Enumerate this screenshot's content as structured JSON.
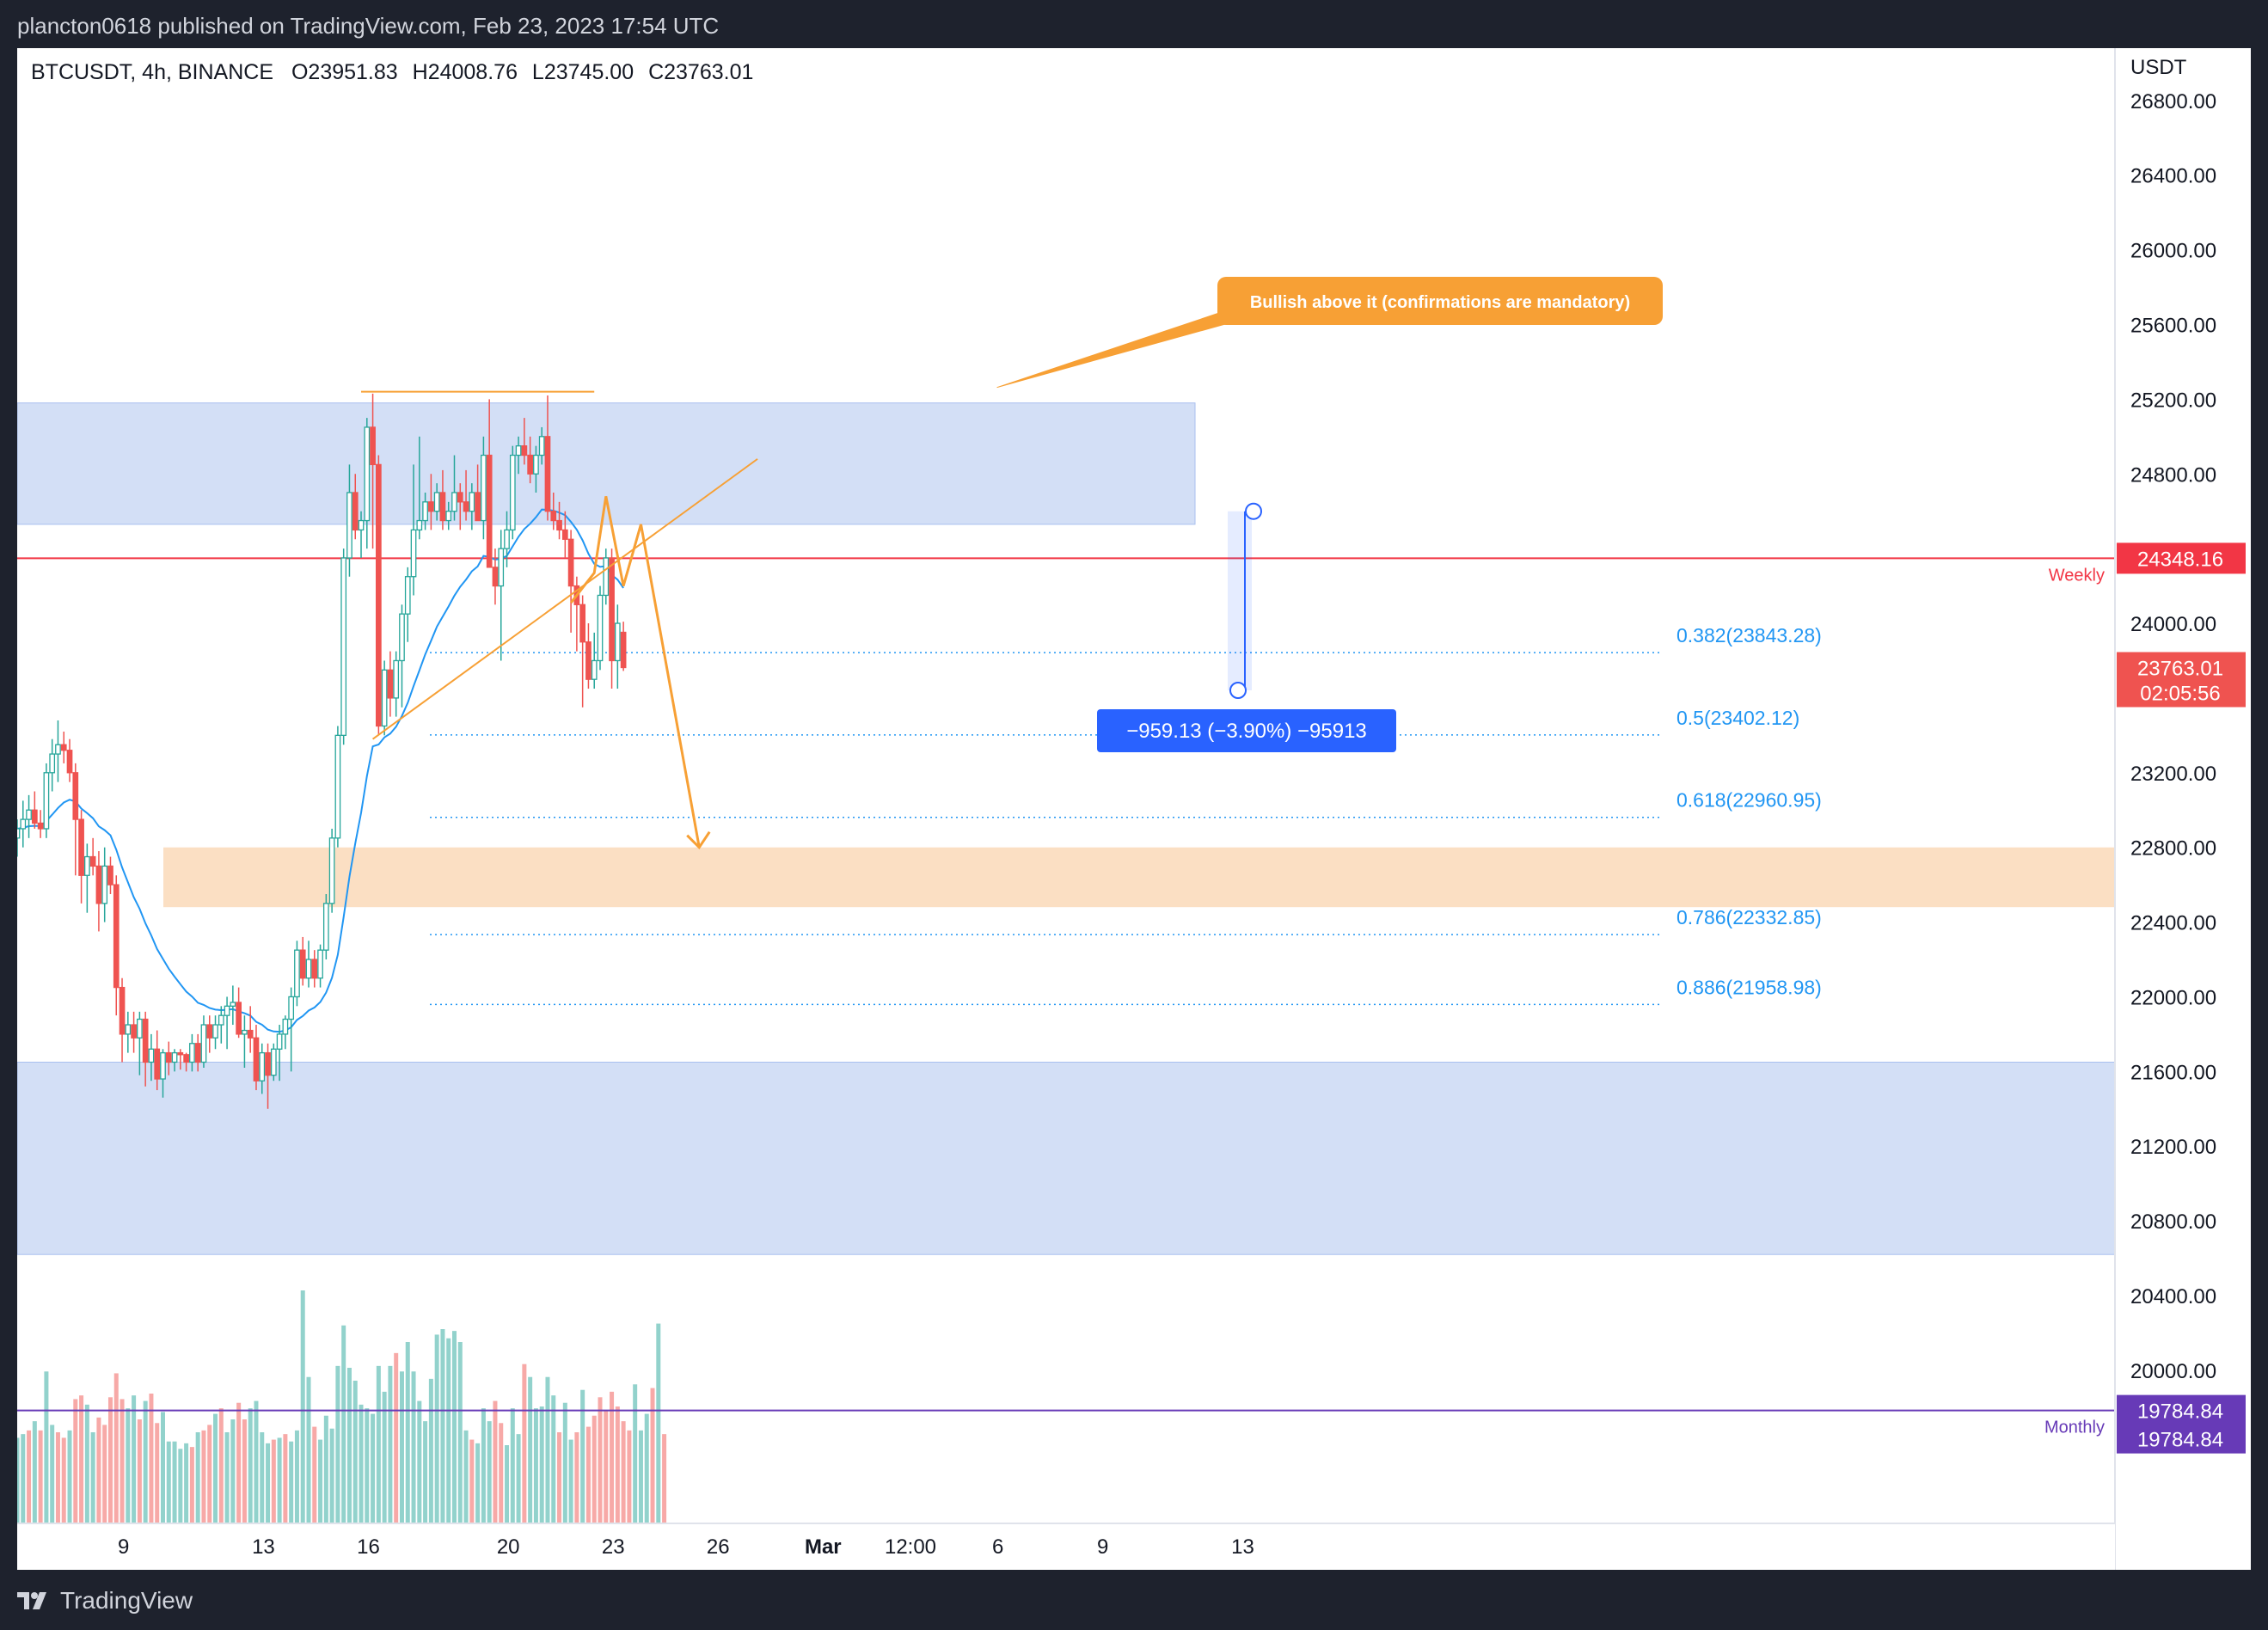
{
  "header": {
    "publish_line": "plancton0618 published on TradingView.com, Feb 23, 2023 17:54 UTC"
  },
  "footer": {
    "logo_text": "TradingView"
  },
  "legend": {
    "symbol": "BTCUSDT, 4h, BINANCE",
    "open": "O23951.83",
    "high": "H24008.76",
    "low": "L23745.00",
    "close": "C23763.01"
  },
  "colors": {
    "up": "#26a69a",
    "down": "#ef5350",
    "ema": "#2196f3",
    "annotation": "#f7a035",
    "weekly": "#f23645",
    "monthly": "#673ab7",
    "fib": "#2196f3",
    "zone_blue": "#cfdcf6",
    "zone_orange": "#fbdcbd",
    "measure": "#2962ff"
  },
  "chart_data": {
    "type": "candlestick",
    "symbol": "BTCUSDT",
    "timeframe": "4h",
    "exchange": "BINANCE",
    "currency": "USDT",
    "ohlc_last": {
      "open": 23951.83,
      "high": 24008.76,
      "low": 23745.0,
      "close": 23763.01
    },
    "ylim": [
      19180,
      27080
    ],
    "y_ticks": [
      20000,
      20400,
      20800,
      21200,
      21600,
      22000,
      22400,
      22800,
      23200,
      23600,
      24000,
      24400,
      24800,
      25200,
      25600,
      26000,
      26400,
      26800
    ],
    "y_tick_labels": [
      "20000.00",
      "20400.00",
      "20800.00",
      "21200.00",
      "21600.00",
      "22000.00",
      "22400.00",
      "22800.00",
      "23200.00",
      "",
      "24000.00",
      "",
      "24800.00",
      "25200.00",
      "25600.00",
      "26000.00",
      "26400.00",
      "26800.00"
    ],
    "x_ticks": [
      {
        "label": "9",
        "bar": 15
      },
      {
        "label": "13",
        "bar": 39
      },
      {
        "label": "16",
        "bar": 57
      },
      {
        "label": "20",
        "bar": 81
      },
      {
        "label": "23",
        "bar": 99
      },
      {
        "label": "26",
        "bar": 117
      },
      {
        "label": "Mar",
        "bar": 135
      },
      {
        "label": "12:00",
        "bar": 150
      },
      {
        "label": "6",
        "bar": 165
      },
      {
        "label": "9",
        "bar": 183
      },
      {
        "label": "13",
        "bar": 207
      }
    ],
    "candles": [
      [
        22850,
        22950,
        22750,
        22900
      ],
      [
        22900,
        23050,
        22800,
        22950
      ],
      [
        22950,
        23080,
        22850,
        23000
      ],
      [
        23000,
        23100,
        22900,
        22930
      ],
      [
        22930,
        23000,
        22850,
        22900
      ],
      [
        22900,
        23250,
        22850,
        23200
      ],
      [
        23200,
        23380,
        23100,
        23300
      ],
      [
        23300,
        23480,
        23150,
        23350
      ],
      [
        23350,
        23420,
        23250,
        23320
      ],
      [
        23320,
        23380,
        23150,
        23200
      ],
      [
        23200,
        23250,
        22650,
        22950
      ],
      [
        22950,
        23000,
        22500,
        22650
      ],
      [
        22650,
        22820,
        22450,
        22750
      ],
      [
        22750,
        22850,
        22650,
        22700
      ],
      [
        22700,
        22780,
        22350,
        22500
      ],
      [
        22500,
        22800,
        22400,
        22700
      ],
      [
        22700,
        22750,
        22550,
        22600
      ],
      [
        22600,
        22650,
        21900,
        22050
      ],
      [
        22050,
        22100,
        21650,
        21800
      ],
      [
        21800,
        21920,
        21700,
        21850
      ],
      [
        21850,
        21920,
        21700,
        21780
      ],
      [
        21780,
        21920,
        21580,
        21880
      ],
      [
        21880,
        21920,
        21520,
        21650
      ],
      [
        21650,
        21800,
        21550,
        21720
      ],
      [
        21720,
        21820,
        21500,
        21560
      ],
      [
        21560,
        21720,
        21460,
        21700
      ],
      [
        21700,
        21760,
        21580,
        21650
      ],
      [
        21650,
        21720,
        21600,
        21700
      ],
      [
        21700,
        21720,
        21610,
        21690
      ],
      [
        21690,
        21700,
        21600,
        21650
      ],
      [
        21650,
        21800,
        21600,
        21750
      ],
      [
        21750,
        21800,
        21600,
        21650
      ],
      [
        21650,
        21900,
        21620,
        21850
      ],
      [
        21850,
        21900,
        21700,
        21780
      ],
      [
        21780,
        21900,
        21720,
        21850
      ],
      [
        21850,
        21950,
        21750,
        21900
      ],
      [
        21900,
        22000,
        21720,
        21950
      ],
      [
        21950,
        22060,
        21850,
        21970
      ],
      [
        21970,
        22050,
        21780,
        21800
      ],
      [
        21800,
        21900,
        21620,
        21820
      ],
      [
        21820,
        21950,
        21700,
        21780
      ],
      [
        21780,
        21850,
        21500,
        21550
      ],
      [
        21550,
        21750,
        21480,
        21700
      ],
      [
        21700,
        21750,
        21400,
        21580
      ],
      [
        21580,
        21750,
        21550,
        21720
      ],
      [
        21720,
        21850,
        21550,
        21800
      ],
      [
        21800,
        21900,
        21720,
        21880
      ],
      [
        21880,
        22050,
        21600,
        22000
      ],
      [
        22000,
        22300,
        21950,
        22250
      ],
      [
        22250,
        22320,
        22060,
        22100
      ],
      [
        22100,
        22300,
        22050,
        22200
      ],
      [
        22200,
        22250,
        22050,
        22100
      ],
      [
        22100,
        22280,
        22050,
        22250
      ],
      [
        22250,
        22550,
        22200,
        22500
      ],
      [
        22500,
        22900,
        22450,
        22850
      ],
      [
        22850,
        23450,
        22800,
        23400
      ],
      [
        23400,
        24400,
        23350,
        24350
      ],
      [
        24350,
        24850,
        24250,
        24700
      ],
      [
        24700,
        24800,
        24450,
        24500
      ],
      [
        24500,
        24600,
        24350,
        24550
      ],
      [
        24550,
        25100,
        24400,
        25050
      ],
      [
        25050,
        25230,
        24400,
        24850
      ],
      [
        24850,
        24900,
        23400,
        23450
      ],
      [
        23450,
        23800,
        23400,
        23750
      ],
      [
        23750,
        23850,
        23500,
        23600
      ],
      [
        23600,
        23850,
        23500,
        23800
      ],
      [
        23800,
        24100,
        23550,
        24050
      ],
      [
        24050,
        24300,
        23900,
        24250
      ],
      [
        24250,
        24850,
        24150,
        24500
      ],
      [
        24500,
        25000,
        24450,
        24550
      ],
      [
        24550,
        24700,
        24500,
        24650
      ],
      [
        24650,
        24800,
        24500,
        24600
      ],
      [
        24600,
        24750,
        24550,
        24700
      ],
      [
        24700,
        24820,
        24500,
        24550
      ],
      [
        24550,
        24650,
        24500,
        24600
      ],
      [
        24600,
        24900,
        24550,
        24700
      ],
      [
        24700,
        24750,
        24500,
        24650
      ],
      [
        24650,
        24820,
        24550,
        24600
      ],
      [
        24600,
        24750,
        24500,
        24700
      ],
      [
        24700,
        24850,
        24550,
        24550
      ],
      [
        24550,
        25000,
        24450,
        24900
      ],
      [
        24900,
        25200,
        24300,
        24300
      ],
      [
        24300,
        24400,
        24100,
        24200
      ],
      [
        24200,
        24500,
        23800,
        24400
      ],
      [
        24400,
        24600,
        24300,
        24500
      ],
      [
        24500,
        24950,
        24450,
        24900
      ],
      [
        24900,
        25000,
        24800,
        24950
      ],
      [
        24950,
        25100,
        24850,
        24900
      ],
      [
        24900,
        25000,
        24750,
        24800
      ],
      [
        24800,
        24950,
        24700,
        24900
      ],
      [
        24900,
        25050,
        24850,
        25000
      ],
      [
        25000,
        25220,
        24550,
        24600
      ],
      [
        24600,
        24700,
        24500,
        24550
      ],
      [
        24550,
        24650,
        24450,
        24500
      ],
      [
        24500,
        24600,
        24350,
        24450
      ],
      [
        24450,
        24500,
        23950,
        24200
      ],
      [
        24200,
        24250,
        23850,
        24100
      ],
      [
        24100,
        24150,
        23550,
        23900
      ],
      [
        23900,
        24000,
        23650,
        23700
      ],
      [
        23700,
        23950,
        23650,
        23800
      ],
      [
        23800,
        24200,
        23750,
        24150
      ],
      [
        24150,
        24400,
        24100,
        24350
      ],
      [
        24350,
        24400,
        23650,
        23800
      ],
      [
        23800,
        24100,
        23650,
        24000
      ],
      [
        23951.83,
        24008.76,
        23745.0,
        23763.01
      ]
    ],
    "volume": [
      [
        4600,
        true
      ],
      [
        4800,
        true
      ],
      [
        5000,
        false
      ],
      [
        5500,
        true
      ],
      [
        5000,
        false
      ],
      [
        8200,
        true
      ],
      [
        5300,
        true
      ],
      [
        4900,
        false
      ],
      [
        4600,
        false
      ],
      [
        5000,
        true
      ],
      [
        6700,
        false
      ],
      [
        6900,
        false
      ],
      [
        6400,
        true
      ],
      [
        4900,
        true
      ],
      [
        5700,
        false
      ],
      [
        5300,
        false
      ],
      [
        6800,
        false
      ],
      [
        8100,
        false
      ],
      [
        6700,
        false
      ],
      [
        6200,
        true
      ],
      [
        6900,
        true
      ],
      [
        5600,
        false
      ],
      [
        6600,
        true
      ],
      [
        7000,
        false
      ],
      [
        5400,
        false
      ],
      [
        6000,
        true
      ],
      [
        4400,
        true
      ],
      [
        4400,
        true
      ],
      [
        4000,
        true
      ],
      [
        4300,
        true
      ],
      [
        4100,
        false
      ],
      [
        4900,
        true
      ],
      [
        5000,
        false
      ],
      [
        5300,
        false
      ],
      [
        5900,
        true
      ],
      [
        6200,
        false
      ],
      [
        4900,
        true
      ],
      [
        5600,
        true
      ],
      [
        6500,
        false
      ],
      [
        5600,
        false
      ],
      [
        6200,
        true
      ],
      [
        6600,
        true
      ],
      [
        4900,
        true
      ],
      [
        4300,
        true
      ],
      [
        4500,
        false
      ],
      [
        4600,
        true
      ],
      [
        4800,
        false
      ],
      [
        4400,
        true
      ],
      [
        5000,
        true
      ],
      [
        12600,
        true
      ],
      [
        7900,
        true
      ],
      [
        5200,
        false
      ],
      [
        4500,
        true
      ],
      [
        5800,
        true
      ],
      [
        5100,
        true
      ],
      [
        8500,
        true
      ],
      [
        10700,
        true
      ],
      [
        8400,
        true
      ],
      [
        7700,
        true
      ],
      [
        6400,
        true
      ],
      [
        6200,
        true
      ],
      [
        5900,
        true
      ],
      [
        8500,
        true
      ],
      [
        7100,
        true
      ],
      [
        8500,
        true
      ],
      [
        9200,
        false
      ],
      [
        8200,
        true
      ],
      [
        9800,
        true
      ],
      [
        8200,
        true
      ],
      [
        6600,
        true
      ],
      [
        5500,
        true
      ],
      [
        7800,
        true
      ],
      [
        10200,
        true
      ],
      [
        10500,
        true
      ],
      [
        10000,
        true
      ],
      [
        10400,
        true
      ],
      [
        9800,
        true
      ],
      [
        5000,
        true
      ],
      [
        4500,
        false
      ],
      [
        4300,
        true
      ],
      [
        6200,
        true
      ],
      [
        5500,
        true
      ],
      [
        6600,
        false
      ],
      [
        5400,
        false
      ],
      [
        4200,
        true
      ],
      [
        6200,
        true
      ],
      [
        4800,
        true
      ],
      [
        8600,
        false
      ],
      [
        7900,
        true
      ],
      [
        6200,
        true
      ],
      [
        6300,
        true
      ],
      [
        7900,
        true
      ],
      [
        6900,
        true
      ],
      [
        4900,
        false
      ],
      [
        6500,
        true
      ],
      [
        4500,
        true
      ],
      [
        4900,
        false
      ],
      [
        7200,
        true
      ],
      [
        5200,
        false
      ],
      [
        5800,
        false
      ],
      [
        6800,
        false
      ],
      [
        6100,
        false
      ],
      [
        7100,
        false
      ],
      [
        6300,
        false
      ],
      [
        5500,
        false
      ],
      [
        5000,
        false
      ],
      [
        7500,
        true
      ],
      [
        5000,
        true
      ],
      [
        5900,
        true
      ],
      [
        7300,
        false
      ],
      [
        10800,
        true
      ],
      [
        4800,
        false
      ]
    ],
    "ema_label": "",
    "fibonacci": [
      {
        "level": "0.382",
        "price": 23843.28,
        "label": "0.382(23843.28)"
      },
      {
        "level": "0.5",
        "price": 23402.12,
        "label": "0.5(23402.12)"
      },
      {
        "level": "0.618",
        "price": 22960.95,
        "label": "0.618(22960.95)"
      },
      {
        "level": "0.786",
        "price": 22332.85,
        "label": "0.786(22332.85)"
      },
      {
        "level": "0.886",
        "price": 21958.98,
        "label": "0.886(21958.98)"
      }
    ],
    "horizontal_lines": [
      {
        "name": "Weekly",
        "price": 24348.16,
        "label": "24348.16",
        "color": "#f23645"
      },
      {
        "name": "Monthly",
        "price": 19784.84,
        "label": "19784.84",
        "color": "#673ab7"
      }
    ],
    "current_price": {
      "label": "23763.01",
      "countdown": "02:05:56"
    },
    "monthly_tag_second": "19784.84",
    "zones": [
      {
        "name": "resistance-zone",
        "from": 24530,
        "to": 25180,
        "color": "blue"
      },
      {
        "name": "support-zone",
        "from": 20620,
        "to": 21650,
        "color": "blue"
      },
      {
        "name": "demand-zone",
        "from": 22480,
        "to": 22800,
        "color": "orange"
      }
    ],
    "trendline": {
      "from_bar": 61,
      "from_price": 23380,
      "to_bar": 127,
      "to_price": 24880
    },
    "top_line": {
      "from_bar": 61,
      "to_bar": 99,
      "price": 25240
    },
    "projection": [
      [
        95,
        24110
      ],
      [
        99,
        24270
      ],
      [
        101,
        24680
      ],
      [
        104,
        24200
      ],
      [
        107,
        24530
      ],
      [
        117,
        22800
      ]
    ],
    "callout": {
      "text": "Bullish above it (confirmations are mandatory)",
      "anchor_bar": 102,
      "anchor_price": 25240
    },
    "measure": {
      "text": "−959.13 (−3.90%) −95913",
      "from_price": 24600,
      "to_price": 23641,
      "bar": 127
    }
  }
}
